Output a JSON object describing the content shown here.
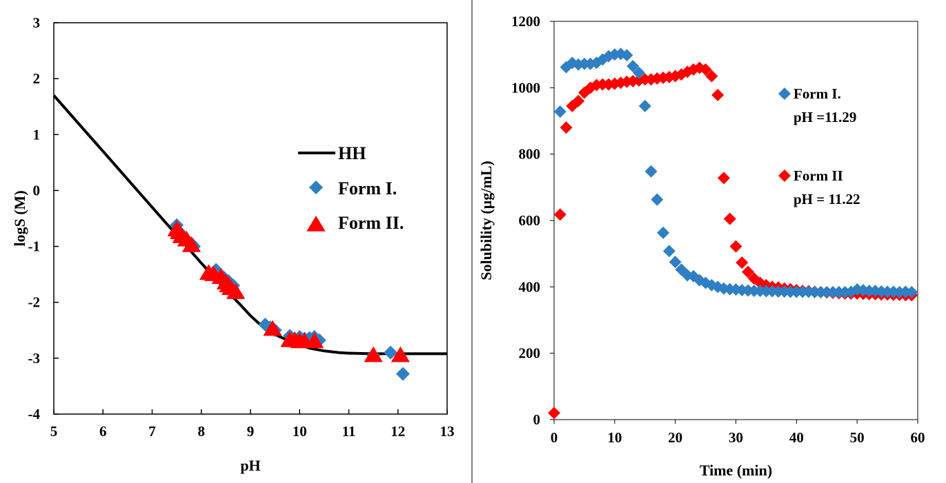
{
  "chart_data": [
    {
      "type": "scatter",
      "xlabel": "pH",
      "ylabel": "logS (M)",
      "xlim": [
        5,
        13
      ],
      "ylim": [
        -4,
        3
      ],
      "xticks": [
        "5",
        "6",
        "7",
        "8",
        "9",
        "10",
        "11",
        "12",
        "13"
      ],
      "yticks": [
        "3",
        "2",
        "1",
        "0",
        "-1",
        "-2",
        "-3",
        "-4"
      ],
      "legend": [
        "HH",
        "Form I.",
        "Form II."
      ],
      "legend_position": "right",
      "colors": {
        "hh": "#000000",
        "form1": "#2f7fc4",
        "form2": "#ff0000"
      },
      "series": [
        {
          "name": "HH",
          "kind": "line",
          "x": [
            5.0,
            5.5,
            6.0,
            6.5,
            7.0,
            7.5,
            8.0,
            8.5,
            8.8,
            9.0,
            9.3,
            9.6,
            9.9,
            10.2,
            10.5,
            10.8,
            11.0,
            11.5,
            12.0,
            12.5,
            13.0
          ],
          "y": [
            1.7,
            1.2,
            0.7,
            0.2,
            -0.3,
            -0.8,
            -1.3,
            -1.78,
            -2.05,
            -2.24,
            -2.48,
            -2.62,
            -2.73,
            -2.82,
            -2.87,
            -2.9,
            -2.91,
            -2.92,
            -2.92,
            -2.92,
            -2.92
          ]
        },
        {
          "name": "Form I.",
          "marker": "diamond",
          "x": [
            7.5,
            7.6,
            7.7,
            7.8,
            7.85,
            8.3,
            8.45,
            8.55,
            8.65,
            9.3,
            9.4,
            9.5,
            9.8,
            9.9,
            10.0,
            10.1,
            10.2,
            10.3,
            10.4,
            11.5,
            11.85,
            12.1
          ],
          "y": [
            -0.62,
            -0.78,
            -0.88,
            -0.95,
            -1.0,
            -1.42,
            -1.55,
            -1.62,
            -1.7,
            -2.4,
            -2.45,
            -2.5,
            -2.6,
            -2.65,
            -2.62,
            -2.65,
            -2.64,
            -2.62,
            -2.68,
            -2.95,
            -2.9,
            -3.28
          ]
        },
        {
          "name": "Form II.",
          "marker": "triangle",
          "x": [
            7.5,
            7.55,
            7.6,
            7.7,
            7.8,
            8.15,
            8.25,
            8.4,
            8.5,
            8.55,
            8.6,
            8.7,
            9.45,
            9.8,
            9.9,
            10.0,
            10.1,
            10.3,
            11.5,
            12.05
          ],
          "y": [
            -0.7,
            -0.75,
            -0.82,
            -0.88,
            -0.98,
            -1.48,
            -1.5,
            -1.55,
            -1.65,
            -1.7,
            -1.75,
            -1.82,
            -2.48,
            -2.68,
            -2.68,
            -2.7,
            -2.7,
            -2.7,
            -2.95,
            -2.95
          ]
        }
      ]
    },
    {
      "type": "scatter",
      "xlabel": "Time  (min)",
      "ylabel": "Solubility  (µg/mL)",
      "xlim": [
        0,
        60
      ],
      "ylim": [
        0,
        1200
      ],
      "xticks": [
        "0",
        "10",
        "20",
        "30",
        "40",
        "50",
        "60"
      ],
      "yticks": [
        "1200",
        "1000",
        "800",
        "600",
        "400",
        "200",
        "0"
      ],
      "legend_position": "right",
      "colors": {
        "form1": "#2f7fc4",
        "form2": "#ff0000"
      },
      "legend_entries": [
        {
          "line1": "Form I.",
          "line2": "pH =11.29"
        },
        {
          "line1": "Form II",
          "line2": "pH = 11.22"
        }
      ],
      "series": [
        {
          "name": "Form I.",
          "marker": "diamond",
          "x": [
            1,
            2,
            3,
            4,
            5,
            6,
            7,
            8,
            9,
            10,
            11,
            12,
            13,
            14,
            15,
            16,
            17,
            18,
            19,
            20,
            21,
            22,
            23,
            24,
            25,
            26,
            27,
            28,
            29,
            30,
            31,
            32,
            33,
            34,
            35,
            36,
            37,
            38,
            39,
            40,
            41,
            42,
            43,
            44,
            45,
            46,
            47,
            48,
            49,
            50,
            51,
            52,
            53,
            54,
            55,
            56,
            57,
            58,
            59
          ],
          "y": [
            928,
            1062,
            1075,
            1070,
            1072,
            1072,
            1075,
            1085,
            1095,
            1100,
            1102,
            1098,
            1065,
            1045,
            945,
            748,
            663,
            563,
            508,
            475,
            452,
            435,
            432,
            420,
            412,
            405,
            400,
            395,
            393,
            392,
            390,
            389,
            388,
            388,
            387,
            387,
            386,
            386,
            385,
            385,
            385,
            385,
            384,
            384,
            384,
            384,
            384,
            384,
            385,
            392,
            390,
            388,
            388,
            386,
            385,
            385,
            384,
            385,
            384
          ]
        },
        {
          "name": "Form II",
          "marker": "diamond",
          "x": [
            0,
            1,
            2,
            3,
            4,
            5,
            6,
            7,
            8,
            9,
            10,
            11,
            12,
            13,
            14,
            15,
            16,
            17,
            18,
            19,
            20,
            21,
            22,
            23,
            24,
            25,
            26,
            27,
            28,
            29,
            30,
            31,
            32,
            33,
            34,
            35,
            36,
            37,
            38,
            39,
            40,
            41,
            42,
            43,
            44,
            45,
            46,
            47,
            48,
            49,
            50,
            51,
            52,
            53,
            54,
            55,
            56,
            57,
            58,
            59
          ],
          "y": [
            20,
            618,
            880,
            945,
            960,
            985,
            1000,
            1008,
            1010,
            1010,
            1012,
            1015,
            1018,
            1020,
            1022,
            1025,
            1025,
            1028,
            1030,
            1032,
            1035,
            1040,
            1048,
            1055,
            1060,
            1055,
            1035,
            978,
            728,
            605,
            522,
            473,
            445,
            425,
            412,
            405,
            400,
            398,
            395,
            393,
            390,
            388,
            387,
            385,
            384,
            383,
            382,
            381,
            380,
            380,
            380,
            379,
            378,
            378,
            377,
            377,
            376,
            376,
            375,
            375
          ]
        }
      ]
    }
  ]
}
